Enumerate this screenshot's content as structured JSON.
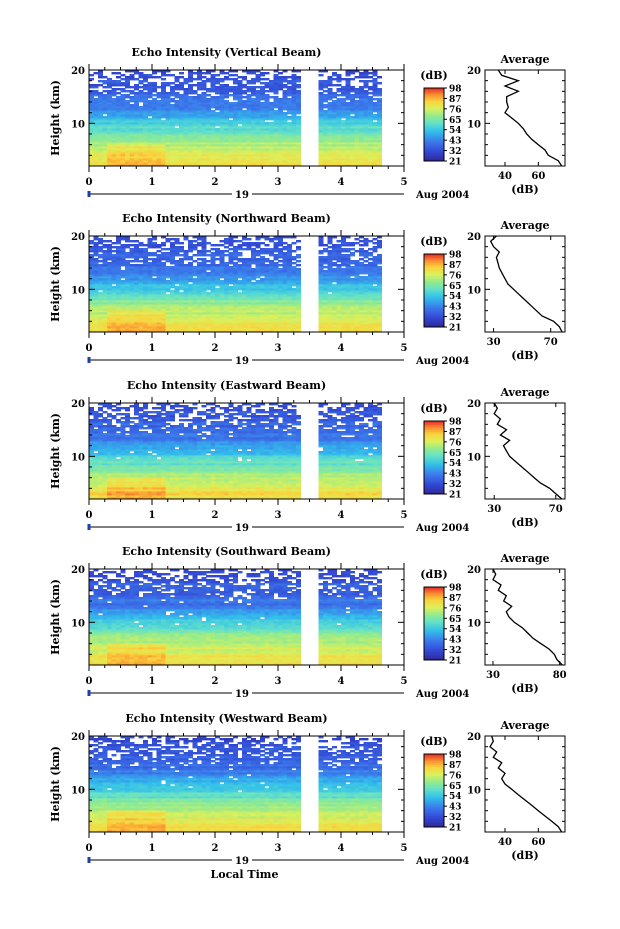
{
  "figure": {
    "x_axis_label": "Local Time",
    "day_label": "19",
    "date_label": "Aug 2004",
    "colorbar_unit": "(dB)",
    "profile_title": "Average",
    "profile_xlabel": "(dB)",
    "y_axis_label": "Height (km)"
  },
  "chart_data": [
    {
      "type": "heatmap",
      "title": "Echo Intensity (Vertical Beam)",
      "ylabel": "Height (km)",
      "xlim": [
        0,
        5
      ],
      "ylim": [
        2,
        20
      ],
      "x_ticks": [
        "0",
        "1",
        "2",
        "3",
        "4",
        "5"
      ],
      "y_ticks": [
        "10",
        "20"
      ],
      "colorbar_ticks": [
        "98",
        "87",
        "76",
        "65",
        "54",
        "43",
        "32",
        "21"
      ],
      "data_gap_hours": [
        3.35,
        3.65
      ],
      "data_end_hours": 4.65,
      "profile": {
        "title": "Average",
        "xlabel": "(dB)",
        "x_ticks": [
          "40",
          "60"
        ],
        "xlim": [
          28,
          76
        ],
        "heights": [
          2,
          3,
          4,
          5,
          6,
          7,
          8,
          9,
          10,
          11,
          12,
          13,
          14,
          15,
          16,
          17,
          18,
          19,
          20
        ],
        "values": [
          74,
          72,
          66,
          64,
          60,
          56,
          53,
          51,
          48,
          44,
          40,
          42,
          41,
          41,
          48,
          40,
          48,
          38,
          36
        ]
      }
    },
    {
      "type": "heatmap",
      "title": "Echo Intensity (Northward Beam)",
      "ylabel": "Height (km)",
      "xlim": [
        0,
        5
      ],
      "ylim": [
        2,
        20
      ],
      "x_ticks": [
        "0",
        "1",
        "2",
        "3",
        "4",
        "5"
      ],
      "y_ticks": [
        "10",
        "20"
      ],
      "colorbar_ticks": [
        "98",
        "87",
        "76",
        "65",
        "54",
        "43",
        "32",
        "21"
      ],
      "data_gap_hours": [
        3.35,
        3.65
      ],
      "data_end_hours": 4.65,
      "profile": {
        "title": "Average",
        "xlabel": "(dB)",
        "x_ticks": [
          "30",
          "70"
        ],
        "xlim": [
          24,
          80
        ],
        "heights": [
          2,
          3,
          4,
          5,
          6,
          7,
          8,
          9,
          10,
          11,
          12,
          13,
          14,
          15,
          16,
          17,
          18,
          19,
          20
        ],
        "values": [
          78,
          76,
          72,
          64,
          60,
          56,
          52,
          48,
          44,
          40,
          38,
          36,
          34,
          33,
          32,
          34,
          30,
          28,
          32
        ]
      }
    },
    {
      "type": "heatmap",
      "title": "Echo Intensity (Eastward Beam)",
      "ylabel": "Height (km)",
      "xlim": [
        0,
        5
      ],
      "ylim": [
        2,
        20
      ],
      "x_ticks": [
        "0",
        "1",
        "2",
        "3",
        "4",
        "5"
      ],
      "y_ticks": [
        "10",
        "20"
      ],
      "colorbar_ticks": [
        "98",
        "87",
        "76",
        "65",
        "54",
        "43",
        "32",
        "21"
      ],
      "data_gap_hours": [
        3.35,
        3.65
      ],
      "data_end_hours": 4.65,
      "profile": {
        "title": "Average",
        "xlabel": "(dB)",
        "x_ticks": [
          "30",
          "70"
        ],
        "xlim": [
          24,
          76
        ],
        "heights": [
          2,
          3,
          4,
          5,
          6,
          7,
          8,
          9,
          10,
          11,
          12,
          13,
          14,
          15,
          16,
          17,
          18,
          19,
          20
        ],
        "values": [
          74,
          70,
          66,
          60,
          56,
          52,
          48,
          44,
          40,
          38,
          36,
          40,
          34,
          38,
          32,
          34,
          30,
          32,
          30
        ]
      }
    },
    {
      "type": "heatmap",
      "title": "Echo Intensity (Southward Beam)",
      "ylabel": "Height (km)",
      "xlim": [
        0,
        5
      ],
      "ylim": [
        2,
        20
      ],
      "x_ticks": [
        "0",
        "1",
        "2",
        "3",
        "4",
        "5"
      ],
      "y_ticks": [
        "10",
        "20"
      ],
      "colorbar_ticks": [
        "98",
        "87",
        "76",
        "65",
        "54",
        "43",
        "32",
        "21"
      ],
      "data_gap_hours": [
        3.35,
        3.65
      ],
      "data_end_hours": 4.65,
      "profile": {
        "title": "Average",
        "xlabel": "(dB)",
        "x_ticks": [
          "30",
          "80"
        ],
        "xlim": [
          24,
          84
        ],
        "heights": [
          2,
          3,
          4,
          5,
          6,
          7,
          8,
          9,
          10,
          11,
          12,
          13,
          14,
          15,
          16,
          17,
          18,
          19,
          20
        ],
        "values": [
          82,
          78,
          76,
          72,
          66,
          60,
          56,
          52,
          46,
          42,
          40,
          44,
          38,
          40,
          34,
          36,
          30,
          32,
          30
        ]
      }
    },
    {
      "type": "heatmap",
      "title": "Echo Intensity (Westward Beam)",
      "ylabel": "Height (km)",
      "xlim": [
        0,
        5
      ],
      "ylim": [
        2,
        20
      ],
      "x_ticks": [
        "0",
        "1",
        "2",
        "3",
        "4",
        "5"
      ],
      "y_ticks": [
        "10",
        "20"
      ],
      "colorbar_ticks": [
        "98",
        "87",
        "76",
        "65",
        "54",
        "43",
        "32",
        "21"
      ],
      "data_gap_hours": [
        3.35,
        3.65
      ],
      "data_end_hours": 4.65,
      "profile": {
        "title": "Average",
        "xlabel": "(dB)",
        "x_ticks": [
          "40",
          "60"
        ],
        "xlim": [
          28,
          76
        ],
        "heights": [
          2,
          3,
          4,
          5,
          6,
          7,
          8,
          9,
          10,
          11,
          12,
          13,
          14,
          15,
          16,
          17,
          18,
          19,
          20
        ],
        "values": [
          74,
          72,
          68,
          64,
          60,
          56,
          52,
          48,
          44,
          40,
          38,
          40,
          36,
          38,
          33,
          35,
          31,
          33,
          32
        ]
      }
    }
  ]
}
